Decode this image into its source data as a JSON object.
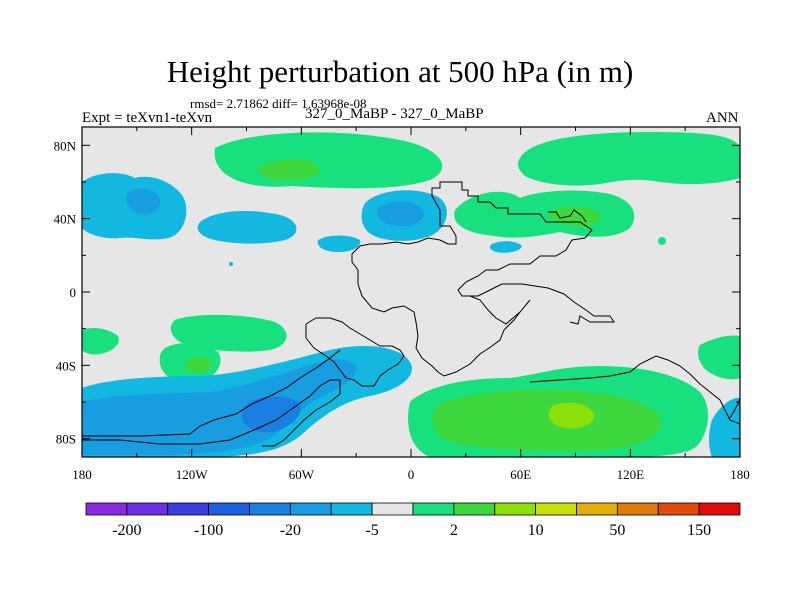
{
  "chart_data": {
    "type": "heatmap",
    "title": "Height perturbation at 500 hPa (in m)",
    "stats_text": "rmsd= 2.71862 diff= 1.63968e-08",
    "experiment_label": "Expt = teXvn1-teXvn",
    "subtitle": "327_0_MaBP - 327_0_MaBP",
    "season": "ANN",
    "x_ticks": [
      "180",
      "120W",
      "60W",
      "0",
      "60E",
      "120E",
      "180"
    ],
    "y_ticks": [
      "80N",
      "40N",
      "0",
      "40S",
      "80S"
    ],
    "xlim": [
      -180,
      180
    ],
    "ylim": [
      -90,
      90
    ],
    "colorbar": {
      "colors": [
        "#8a2be2",
        "#6a31e0",
        "#3b3fe0",
        "#1f5fe0",
        "#1a7fe0",
        "#179de0",
        "#12b8e0",
        "#e6e6e6",
        "#18e07e",
        "#3ed73e",
        "#8ce00a",
        "#c8e00a",
        "#e0b00a",
        "#e07a0a",
        "#e04a0a",
        "#e00a0a"
      ],
      "labels": [
        "-200",
        "-100",
        "-20",
        "-5",
        "2",
        "10",
        "50",
        "150"
      ]
    },
    "regions": [
      {
        "name": "arctic-atlantic-positive",
        "level": "10",
        "lon": -50,
        "lat": 73
      },
      {
        "name": "arctic-pacific-positive",
        "level": "2",
        "lon": 150,
        "lat": 70
      },
      {
        "name": "north-pacific-negative",
        "level": "-20",
        "lon": -140,
        "lat": 48
      },
      {
        "name": "north-atlantic-negative",
        "level": "-20",
        "lon": -5,
        "lat": 42
      },
      {
        "name": "asia-positive",
        "level": "10",
        "lon": 80,
        "lat": 40
      },
      {
        "name": "south-pacific-positive",
        "level": "10",
        "lon": -120,
        "lat": -35
      },
      {
        "name": "southern-ocean-negative",
        "level": "-20",
        "lon": -70,
        "lat": -60
      },
      {
        "name": "southern-indian-positive",
        "level": "50",
        "lon": 90,
        "lat": -65
      }
    ]
  }
}
